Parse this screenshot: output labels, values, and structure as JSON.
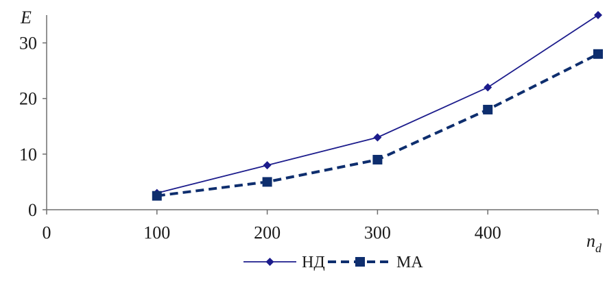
{
  "chart_data": {
    "type": "line",
    "title": "",
    "xlabel": "n",
    "xlabel_sub": "d",
    "ylabel": "E",
    "xlim": [
      0,
      500
    ],
    "ylim": [
      0,
      35
    ],
    "xticks": [
      "0",
      "100",
      "200",
      "300",
      "400"
    ],
    "yticks": [
      "0",
      "10",
      "20",
      "30"
    ],
    "grid": false,
    "legend_position": "bottom",
    "x": [
      100,
      200,
      300,
      400,
      500
    ],
    "series": [
      {
        "name": "НД",
        "values": [
          3,
          8,
          13,
          22,
          35
        ],
        "color": "#1c1c8c",
        "marker": "diamond",
        "line": "solid"
      },
      {
        "name": "МА",
        "values": [
          2.5,
          5,
          9,
          18,
          28
        ],
        "color": "#0e2e6e",
        "marker": "square",
        "line": "dashed"
      }
    ]
  }
}
